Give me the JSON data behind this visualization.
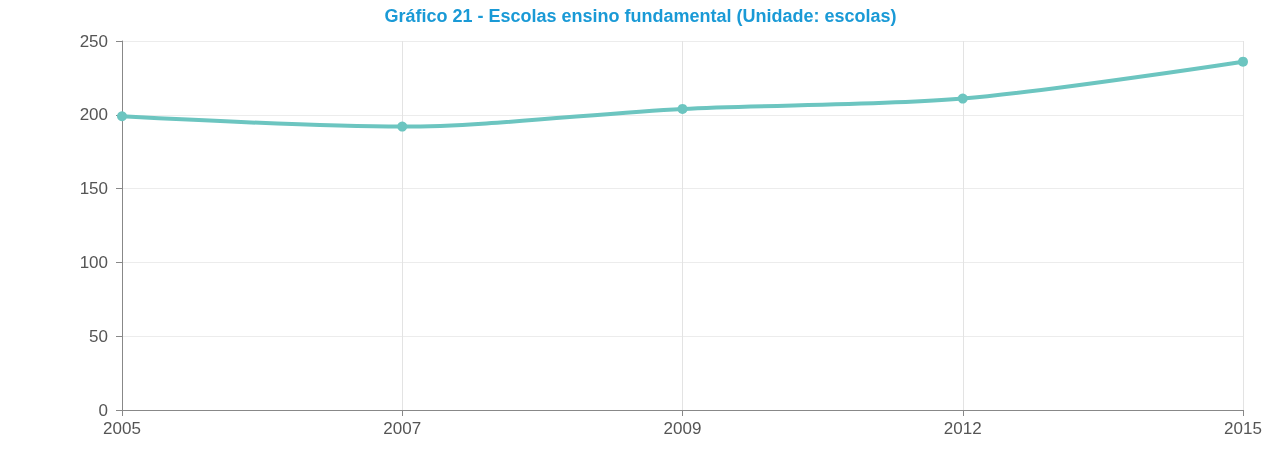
{
  "chart_data": {
    "type": "line",
    "title": "Gráfico 21 - Escolas ensino fundamental (Unidade: escolas)",
    "categories": [
      "2005",
      "2007",
      "2009",
      "2012",
      "2015"
    ],
    "series": [
      {
        "color": "#6cc5c0",
        "values": [
          199,
          192,
          204,
          211,
          236
        ]
      }
    ],
    "ylim": [
      0,
      250
    ],
    "yticks": [
      0,
      50,
      100,
      150,
      200,
      250
    ],
    "grid": true,
    "marker": "circle",
    "line_style": "solid"
  }
}
